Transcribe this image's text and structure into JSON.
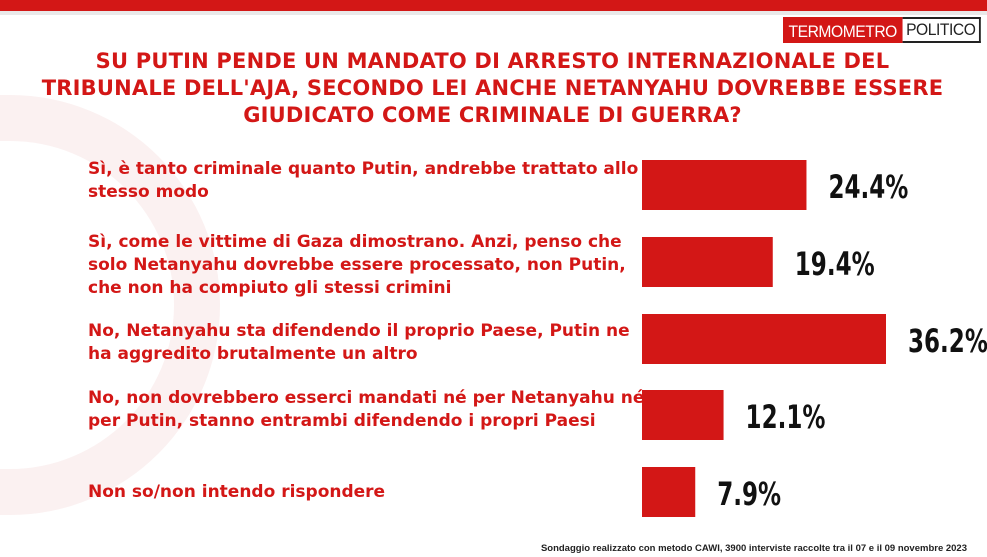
{
  "brand": {
    "logo_part1": "TERMOMETRO",
    "logo_part2": "POLITICO"
  },
  "colors": {
    "accent": "#d31716",
    "value_text": "#111111"
  },
  "footer": "Sondaggio realizzato con metodo CAWI, 3900 interviste raccolte tra il 07 e il 09 novembre 2023",
  "chart_data": {
    "type": "bar",
    "orientation": "horizontal",
    "title": "SU PUTIN PENDE UN MANDATO DI ARRESTO INTERNAZIONALE DEL TRIBUNALE DELL'AJA, SECONDO LEI ANCHE NETANYAHU DOVREBBE ESSERE GIUDICATO COME CRIMINALE DI GUERRA?",
    "categories": [
      "Sì, è tanto criminale quanto Putin, andrebbe trattato allo stesso modo",
      "Sì, come le vittime di Gaza dimostrano. Anzi, penso che solo Netanyahu dovrebbe essere processato, non Putin, che non ha compiuto gli stessi crimini",
      "No, Netanyahu sta difendendo il proprio Paese, Putin ne ha aggredito brutalmente un altro",
      "No, non dovrebbero esserci mandati né per Netanyahu né per Putin, stanno entrambi difendendo i propri Paesi",
      "Non so/non intendo rispondere"
    ],
    "values": [
      24.4,
      19.4,
      36.2,
      12.1,
      7.9
    ],
    "value_labels": [
      "24.4%",
      "19.4%",
      "36.2%",
      "12.1%",
      "7.9%"
    ],
    "unit": "%",
    "grid": false,
    "legend": "none"
  }
}
